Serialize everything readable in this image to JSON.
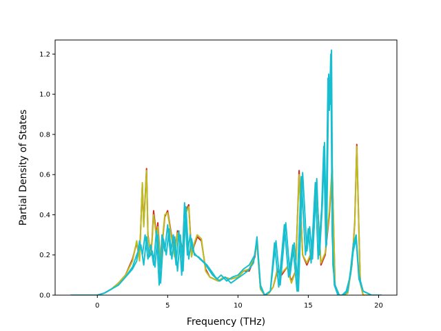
{
  "chart_data": {
    "type": "line",
    "xlabel": "Frequency (THz)",
    "ylabel": "Partial Density of States",
    "xlim": [
      -3.0,
      21.3
    ],
    "ylim": [
      0.0,
      1.27
    ],
    "xticks": [
      "0",
      "5",
      "10",
      "15",
      "20"
    ],
    "yticks": [
      "0.0",
      "0.2",
      "0.4",
      "0.6",
      "0.8",
      "1.0",
      "1.2"
    ],
    "grid": false,
    "legend": "none",
    "series": [
      {
        "color": "#d62728",
        "x": [
          -1.9,
          -0.5,
          0,
          0.5,
          1,
          1.5,
          2,
          2.5,
          2.8,
          3.0,
          3.2,
          3.3,
          3.5,
          3.6,
          3.8,
          3.9,
          4.0,
          4.2,
          4.3,
          4.5,
          4.7,
          4.8,
          5.0,
          5.2,
          5.5,
          5.7,
          5.9,
          6.1,
          6.3,
          6.5,
          6.7,
          6.9,
          7.1,
          7.4,
          7.7,
          8.0,
          8.3,
          8.6,
          9.0,
          9.5,
          10.0,
          10.4,
          10.8,
          11.2,
          11.35,
          11.6,
          11.9,
          12.2,
          12.5,
          12.8,
          13.1,
          13.5,
          13.8,
          14.1,
          14.35,
          14.6,
          14.9,
          15.2,
          15.6,
          15.9,
          16.2,
          16.5,
          16.7,
          16.9,
          17.2,
          17.5,
          17.8,
          18.1,
          18.3,
          18.45,
          18.6,
          18.7,
          18.9,
          19.5,
          20.2
        ],
        "y": [
          0,
          0,
          0,
          0.01,
          0.03,
          0.06,
          0.1,
          0.18,
          0.26,
          0.18,
          0.55,
          0.35,
          0.63,
          0.3,
          0.2,
          0.28,
          0.42,
          0.3,
          0.36,
          0.15,
          0.32,
          0.39,
          0.42,
          0.33,
          0.2,
          0.32,
          0.28,
          0.2,
          0.42,
          0.45,
          0.2,
          0.25,
          0.29,
          0.27,
          0.13,
          0.09,
          0.08,
          0.07,
          0.09,
          0.08,
          0.09,
          0.12,
          0.12,
          0.19,
          0.27,
          0.03,
          0,
          0.01,
          0.04,
          0.12,
          0.1,
          0.14,
          0.07,
          0.12,
          0.62,
          0.2,
          0.15,
          0.2,
          0.52,
          0.15,
          0.2,
          0.4,
          0.63,
          0.05,
          0,
          0,
          0.01,
          0.15,
          0.36,
          0.75,
          0.32,
          0.06,
          0,
          0,
          0
        ]
      },
      {
        "color": "#bcbd22",
        "x": [
          -1.9,
          -0.5,
          0,
          0.5,
          1,
          1.5,
          2,
          2.5,
          2.8,
          3.0,
          3.2,
          3.3,
          3.5,
          3.6,
          3.8,
          3.9,
          4.0,
          4.2,
          4.3,
          4.5,
          4.7,
          4.8,
          5.0,
          5.2,
          5.5,
          5.7,
          5.9,
          6.1,
          6.3,
          6.5,
          6.7,
          6.9,
          7.1,
          7.4,
          7.7,
          8.0,
          8.3,
          8.6,
          9.0,
          9.5,
          10.0,
          10.4,
          10.8,
          11.2,
          11.35,
          11.6,
          11.9,
          12.2,
          12.5,
          12.8,
          13.1,
          13.5,
          13.8,
          14.1,
          14.35,
          14.6,
          14.9,
          15.2,
          15.6,
          15.9,
          16.2,
          16.5,
          16.7,
          16.9,
          17.2,
          17.5,
          17.8,
          18.1,
          18.3,
          18.45,
          18.6,
          18.7,
          18.9,
          19.5,
          20.2
        ],
        "y": [
          0,
          0,
          0,
          0.01,
          0.03,
          0.06,
          0.1,
          0.17,
          0.27,
          0.17,
          0.56,
          0.34,
          0.62,
          0.29,
          0.21,
          0.27,
          0.4,
          0.29,
          0.34,
          0.14,
          0.33,
          0.4,
          0.41,
          0.32,
          0.19,
          0.31,
          0.27,
          0.19,
          0.41,
          0.44,
          0.19,
          0.26,
          0.3,
          0.28,
          0.12,
          0.09,
          0.08,
          0.07,
          0.09,
          0.08,
          0.09,
          0.12,
          0.13,
          0.2,
          0.26,
          0.03,
          0,
          0.01,
          0.04,
          0.13,
          0.11,
          0.14,
          0.06,
          0.12,
          0.6,
          0.2,
          0.16,
          0.21,
          0.5,
          0.16,
          0.21,
          0.42,
          0.65,
          0.05,
          0,
          0,
          0.01,
          0.15,
          0.35,
          0.74,
          0.31,
          0.06,
          0,
          0,
          0
        ]
      },
      {
        "color": "#17becf",
        "x": [
          -1.9,
          -0.5,
          0,
          0.5,
          1,
          1.5,
          2,
          2.5,
          2.8,
          3.0,
          3.2,
          3.4,
          3.6,
          3.8,
          4.0,
          4.2,
          4.4,
          4.6,
          4.8,
          5.0,
          5.2,
          5.4,
          5.6,
          5.8,
          6.0,
          6.2,
          6.4,
          6.6,
          6.8,
          7.0,
          7.3,
          7.6,
          7.9,
          8.2,
          8.5,
          8.8,
          9.2,
          9.6,
          10.0,
          10.4,
          10.8,
          11.2,
          11.35,
          11.6,
          11.9,
          12.3,
          12.7,
          13.0,
          13.4,
          13.7,
          14.0,
          14.3,
          14.6,
          14.9,
          15.1,
          15.3,
          15.6,
          15.8,
          16.0,
          16.15,
          16.3,
          16.45,
          16.55,
          16.65,
          16.75,
          16.9,
          17.2,
          17.5,
          17.8,
          18.0,
          18.2,
          18.4,
          18.6,
          18.9,
          19.5,
          20.2
        ],
        "y": [
          0,
          0,
          0,
          0.01,
          0.03,
          0.05,
          0.09,
          0.13,
          0.17,
          0.27,
          0.2,
          0.3,
          0.18,
          0.25,
          0.15,
          0.32,
          0.05,
          0.3,
          0.22,
          0.35,
          0.2,
          0.3,
          0.15,
          0.32,
          0.1,
          0.46,
          0.2,
          0.3,
          0.22,
          0.2,
          0.18,
          0.16,
          0.13,
          0.1,
          0.08,
          0.1,
          0.07,
          0.09,
          0.1,
          0.13,
          0.15,
          0.2,
          0.29,
          0.05,
          0,
          0.02,
          0.27,
          0.05,
          0.36,
          0.1,
          0.26,
          0.02,
          0.61,
          0.22,
          0.34,
          0.18,
          0.58,
          0.2,
          0.45,
          0.76,
          0.25,
          1.1,
          0.95,
          1.22,
          0.15,
          0.05,
          0,
          0,
          0.02,
          0.12,
          0.25,
          0.3,
          0.1,
          0.02,
          0,
          0
        ]
      },
      {
        "color": "#17becf",
        "x": [
          -1.9,
          -0.5,
          0,
          0.5,
          1,
          1.5,
          2,
          2.5,
          2.8,
          3.1,
          3.3,
          3.5,
          3.7,
          3.9,
          4.1,
          4.3,
          4.5,
          4.7,
          4.9,
          5.1,
          5.3,
          5.5,
          5.7,
          5.9,
          6.1,
          6.3,
          6.5,
          6.7,
          6.9,
          7.2,
          7.5,
          7.8,
          8.1,
          8.4,
          8.7,
          9.1,
          9.5,
          9.9,
          10.3,
          10.7,
          11.1,
          11.35,
          11.6,
          11.9,
          12.3,
          12.6,
          12.9,
          13.3,
          13.6,
          13.9,
          14.2,
          14.5,
          14.8,
          15.0,
          15.2,
          15.5,
          15.7,
          15.95,
          16.1,
          16.25,
          16.4,
          16.5,
          16.6,
          16.7,
          16.85,
          17.1,
          17.4,
          17.7,
          18.0,
          18.2,
          18.4,
          18.6,
          18.9,
          19.5,
          20.2
        ],
        "y": [
          0,
          0,
          0,
          0.01,
          0.03,
          0.05,
          0.09,
          0.14,
          0.2,
          0.25,
          0.15,
          0.29,
          0.19,
          0.22,
          0.14,
          0.3,
          0.06,
          0.28,
          0.2,
          0.33,
          0.18,
          0.29,
          0.12,
          0.3,
          0.12,
          0.44,
          0.18,
          0.28,
          0.2,
          0.19,
          0.17,
          0.15,
          0.12,
          0.09,
          0.07,
          0.09,
          0.06,
          0.08,
          0.1,
          0.12,
          0.16,
          0.28,
          0.04,
          0,
          0.02,
          0.26,
          0.04,
          0.35,
          0.09,
          0.25,
          0.02,
          0.59,
          0.2,
          0.33,
          0.16,
          0.56,
          0.18,
          0.43,
          0.74,
          0.24,
          1.08,
          0.92,
          1.2,
          0.3,
          0.05,
          0,
          0,
          0.02,
          0.1,
          0.22,
          0.28,
          0.08,
          0.02,
          0,
          0
        ]
      }
    ]
  }
}
